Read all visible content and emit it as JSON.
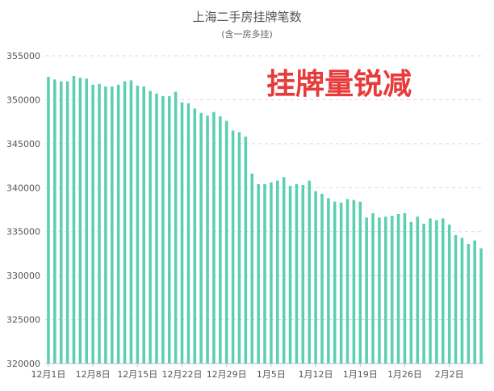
{
  "chart_data": {
    "type": "bar",
    "title": "上海二手房挂牌笔数",
    "subtitle": "(含一房多挂)",
    "annotation": "挂牌量锐减",
    "bar_color": "#5ccfb0",
    "annotation_color": "#e83a3a",
    "ylim": [
      320000,
      355000
    ],
    "yticks": [
      320000,
      325000,
      330000,
      335000,
      340000,
      345000,
      350000,
      355000
    ],
    "grid": true,
    "x_tick_labels": [
      {
        "label": "12月1日",
        "index": 0
      },
      {
        "label": "12月8日",
        "index": 7
      },
      {
        "label": "12月15日",
        "index": 14
      },
      {
        "label": "12月22日",
        "index": 21
      },
      {
        "label": "12月29日",
        "index": 28
      },
      {
        "label": "1月5日",
        "index": 35
      },
      {
        "label": "1月12日",
        "index": 42
      },
      {
        "label": "1月19日",
        "index": 49
      },
      {
        "label": "1月26日",
        "index": 56
      },
      {
        "label": "2月2日",
        "index": 63
      }
    ],
    "values": [
      352600,
      352300,
      352100,
      352100,
      352700,
      352500,
      352400,
      351700,
      351800,
      351500,
      351500,
      351700,
      352100,
      352200,
      351600,
      351500,
      351000,
      350700,
      350400,
      350400,
      350900,
      349700,
      349600,
      349000,
      348500,
      348200,
      348600,
      348100,
      347600,
      346500,
      346300,
      345800,
      341600,
      340400,
      340400,
      340600,
      340800,
      341200,
      340200,
      340400,
      340300,
      340800,
      339600,
      339300,
      338800,
      338400,
      338300,
      338700,
      338600,
      338400,
      336600,
      337100,
      336600,
      336700,
      336800,
      337000,
      337100,
      336100,
      336700,
      335900,
      336500,
      336300,
      336500,
      335800,
      334600,
      334300,
      333600,
      334000,
      333100
    ]
  }
}
